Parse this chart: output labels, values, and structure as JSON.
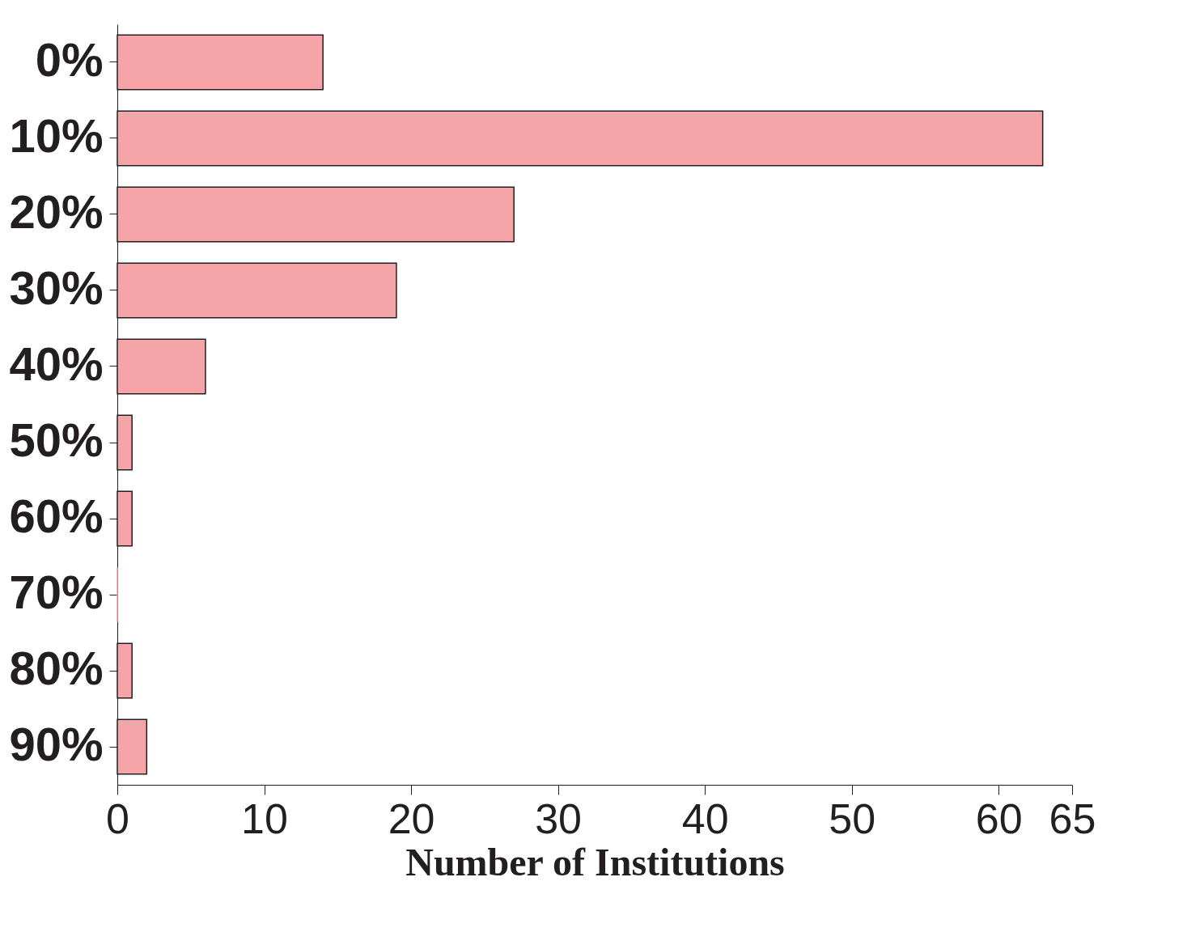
{
  "chart_data": {
    "type": "bar",
    "orientation": "horizontal",
    "xlabel": "Number of Institutions",
    "categories": [
      "0%",
      "10%",
      "20%",
      "30%",
      "40%",
      "50%",
      "60%",
      "70%",
      "80%",
      "90%"
    ],
    "values": [
      14,
      63,
      27,
      19,
      6,
      1,
      1,
      0,
      1,
      2
    ],
    "color": "#f5a5a8",
    "xlim": [
      0,
      65
    ],
    "xticks": [
      0,
      10,
      20,
      30,
      40,
      50,
      60,
      65
    ],
    "grid": false
  }
}
